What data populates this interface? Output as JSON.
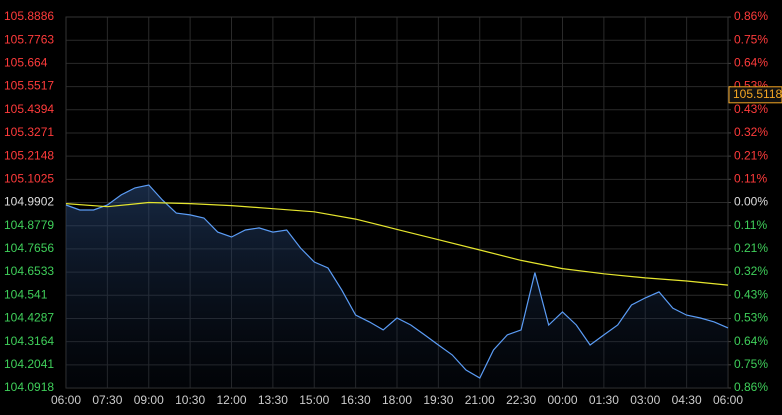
{
  "chart_data": {
    "type": "line",
    "xlim": [
      0,
      24
    ],
    "xticks": [
      {
        "value": 0,
        "label": "06:00"
      },
      {
        "value": 1.5,
        "label": "07:30"
      },
      {
        "value": 3,
        "label": "09:00"
      },
      {
        "value": 4.5,
        "label": "10:30"
      },
      {
        "value": 6,
        "label": "12:00"
      },
      {
        "value": 7.5,
        "label": "13:30"
      },
      {
        "value": 9,
        "label": "15:00"
      },
      {
        "value": 10.5,
        "label": "16:30"
      },
      {
        "value": 12,
        "label": "18:00"
      },
      {
        "value": 13.5,
        "label": "19:30"
      },
      {
        "value": 15,
        "label": "21:00"
      },
      {
        "value": 16.5,
        "label": "22:30"
      },
      {
        "value": 18,
        "label": "00:00"
      },
      {
        "value": 19.5,
        "label": "01:30"
      },
      {
        "value": 21,
        "label": "03:00"
      },
      {
        "value": 22.5,
        "label": "04:30"
      },
      {
        "value": 24,
        "label": "06:00"
      }
    ],
    "ylim": [
      104.0918,
      105.8886
    ],
    "yticks": [
      105.8886,
      105.7763,
      105.664,
      105.5517,
      105.4394,
      105.3271,
      105.2148,
      105.1025,
      104.9902,
      104.8779,
      104.7656,
      104.6533,
      104.541,
      104.4287,
      104.3164,
      104.2041,
      104.0918
    ],
    "y2lim": [
      -0.8557,
      0.8557
    ],
    "y2ticks": [
      {
        "value": 0.8557,
        "label": "0.86%"
      },
      {
        "value": 0.7488,
        "label": "0.75%"
      },
      {
        "value": 0.6418,
        "label": "0.64%"
      },
      {
        "value": 0.5348,
        "label": "0.53%"
      },
      {
        "value": 0.4279,
        "label": "0.43%"
      },
      {
        "value": 0.3209,
        "label": "0.32%"
      },
      {
        "value": 0.2139,
        "label": "0.21%"
      },
      {
        "value": 0.107,
        "label": "0.11%"
      },
      {
        "value": 0,
        "label": "0.00%"
      },
      {
        "value": -0.107,
        "label": "0.11%"
      },
      {
        "value": -0.2139,
        "label": "0.21%"
      },
      {
        "value": -0.3209,
        "label": "0.32%"
      },
      {
        "value": -0.4279,
        "label": "0.43%"
      },
      {
        "value": -0.5348,
        "label": "0.53%"
      },
      {
        "value": -0.6418,
        "label": "0.64%"
      },
      {
        "value": -0.7488,
        "label": "0.75%"
      },
      {
        "value": -0.8557,
        "label": "0.86%"
      }
    ],
    "up_color": "#ff3b3b",
    "down_color": "#3fcf5a",
    "flat_color": "#dddddd",
    "grid": true,
    "price_label": {
      "value": 105.5118,
      "label": "105.5118",
      "color": "#f5a623"
    },
    "series": [
      {
        "color": "#5b9cf5",
        "x": [
          0,
          0.5,
          1,
          1.5,
          2,
          2.5,
          3,
          3.5,
          4,
          4.5,
          5,
          5.5,
          6,
          6.5,
          7,
          7.5,
          8,
          8.5,
          9,
          9.5,
          10,
          10.5,
          11,
          11.5,
          12,
          12.5,
          13,
          13.5,
          14,
          14.5,
          15,
          15.5,
          16,
          16.5,
          17,
          17.5,
          18,
          18.5,
          19,
          19.5,
          20,
          20.5,
          21,
          21.5,
          22,
          22.5,
          23,
          23.5,
          24
        ],
        "values": [
          104.978,
          104.954,
          104.954,
          104.978,
          105.027,
          105.061,
          105.075,
          105.002,
          104.939,
          104.93,
          104.915,
          104.847,
          104.823,
          104.857,
          104.867,
          104.847,
          104.857,
          104.77,
          104.702,
          104.673,
          104.566,
          104.445,
          104.412,
          104.373,
          104.431,
          104.397,
          104.349,
          104.3,
          104.252,
          104.179,
          104.14,
          104.276,
          104.349,
          104.373,
          104.65,
          104.397,
          104.46,
          104.397,
          104.3,
          104.349,
          104.397,
          104.494,
          104.528,
          104.557,
          104.479,
          104.445,
          104.431,
          104.412,
          104.383
        ]
      },
      {
        "color": "#e6e62e",
        "x": [
          0,
          1.5,
          3,
          4.5,
          6,
          7.5,
          9,
          10.5,
          12,
          13.5,
          15,
          16.5,
          18,
          19.5,
          21,
          22.5,
          24
        ],
        "values": [
          104.985,
          104.97,
          104.99,
          104.985,
          104.975,
          104.96,
          104.945,
          104.91,
          104.86,
          104.81,
          104.76,
          104.71,
          104.67,
          104.645,
          104.625,
          104.61,
          104.59
        ]
      }
    ]
  }
}
